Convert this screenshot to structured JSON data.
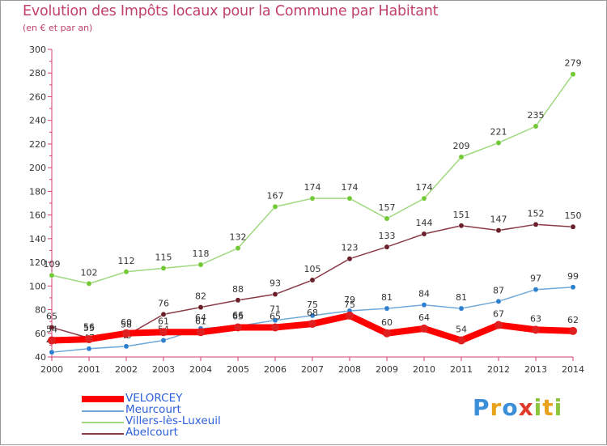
{
  "title": "Evolution des Impôts locaux pour la Commune par Habitant",
  "subtitle": "(en € et par an)",
  "brand": {
    "name": "Proxiti",
    "letters": [
      {
        "ch": "P",
        "color": "#3a8fd8"
      },
      {
        "ch": "r",
        "color": "#e8a21c"
      },
      {
        "ch": "o",
        "color": "#3a8fd8"
      },
      {
        "ch": "x",
        "color": "#e03a2a"
      },
      {
        "ch": "i",
        "color": "#8cc63e"
      },
      {
        "ch": "t",
        "color": "#e8a21c"
      },
      {
        "ch": "i",
        "color": "#8cc63e"
      }
    ]
  },
  "chart_data": {
    "type": "line",
    "x": [
      "2000",
      "2001",
      "2002",
      "2003",
      "2004",
      "2005",
      "2006",
      "2007",
      "2008",
      "2009",
      "2010",
      "2011",
      "2012",
      "2013",
      "2014"
    ],
    "ylim": [
      40,
      300
    ],
    "yticks": [
      40,
      60,
      80,
      100,
      120,
      140,
      160,
      180,
      200,
      220,
      240,
      260,
      280,
      300
    ],
    "grid": false,
    "legend_placement": "bottom-left",
    "series": [
      {
        "name": "Villers-lès-Luxeuil",
        "color": "#9fd87f",
        "marker": "#73c935",
        "values": [
          109,
          102,
          112,
          115,
          118,
          132,
          167,
          174,
          174,
          157,
          174,
          209,
          221,
          235,
          279
        ],
        "labels": [
          "109",
          "102",
          "112",
          "115",
          "118",
          "132",
          "167",
          "174",
          "174",
          "157",
          "174",
          "209",
          "221",
          "235",
          "279"
        ]
      },
      {
        "name": "Abelcourt",
        "color": "#8a3a47",
        "marker": "#6b1f2b",
        "values": [
          65,
          56,
          58,
          76,
          82,
          88,
          93,
          105,
          123,
          133,
          144,
          151,
          147,
          152,
          150
        ],
        "labels": [
          "65",
          "56",
          "58",
          "76",
          "82",
          "88",
          "93",
          "105",
          "123",
          "133",
          "144",
          "151",
          "147",
          "152",
          "150"
        ]
      },
      {
        "name": "Meurcourt",
        "color": "#6fa8d8",
        "marker": "#2f7fd0",
        "values": [
          44,
          47,
          49,
          54,
          64,
          66,
          71,
          75,
          79,
          81,
          84,
          81,
          87,
          97,
          99
        ],
        "labels": [
          "44",
          "47",
          "49",
          "54",
          "64",
          "66",
          "71",
          "75",
          "79",
          "81",
          "84",
          "81",
          "87",
          "97",
          "99"
        ]
      },
      {
        "name": "VELORCEY",
        "color": "#ff0000",
        "marker": "#e02020",
        "values": [
          54,
          55,
          60,
          61,
          61,
          65,
          65,
          68,
          75,
          60,
          64,
          54,
          67,
          63,
          62
        ],
        "labels": [
          "54",
          "55",
          "60",
          "61",
          "61",
          "65",
          "65",
          "68",
          "75",
          "60",
          "64",
          "54",
          "67",
          "63",
          "62"
        ]
      }
    ],
    "legend_order": [
      "VELORCEY",
      "Meurcourt",
      "Villers-lès-Luxeuil",
      "Abelcourt"
    ]
  }
}
